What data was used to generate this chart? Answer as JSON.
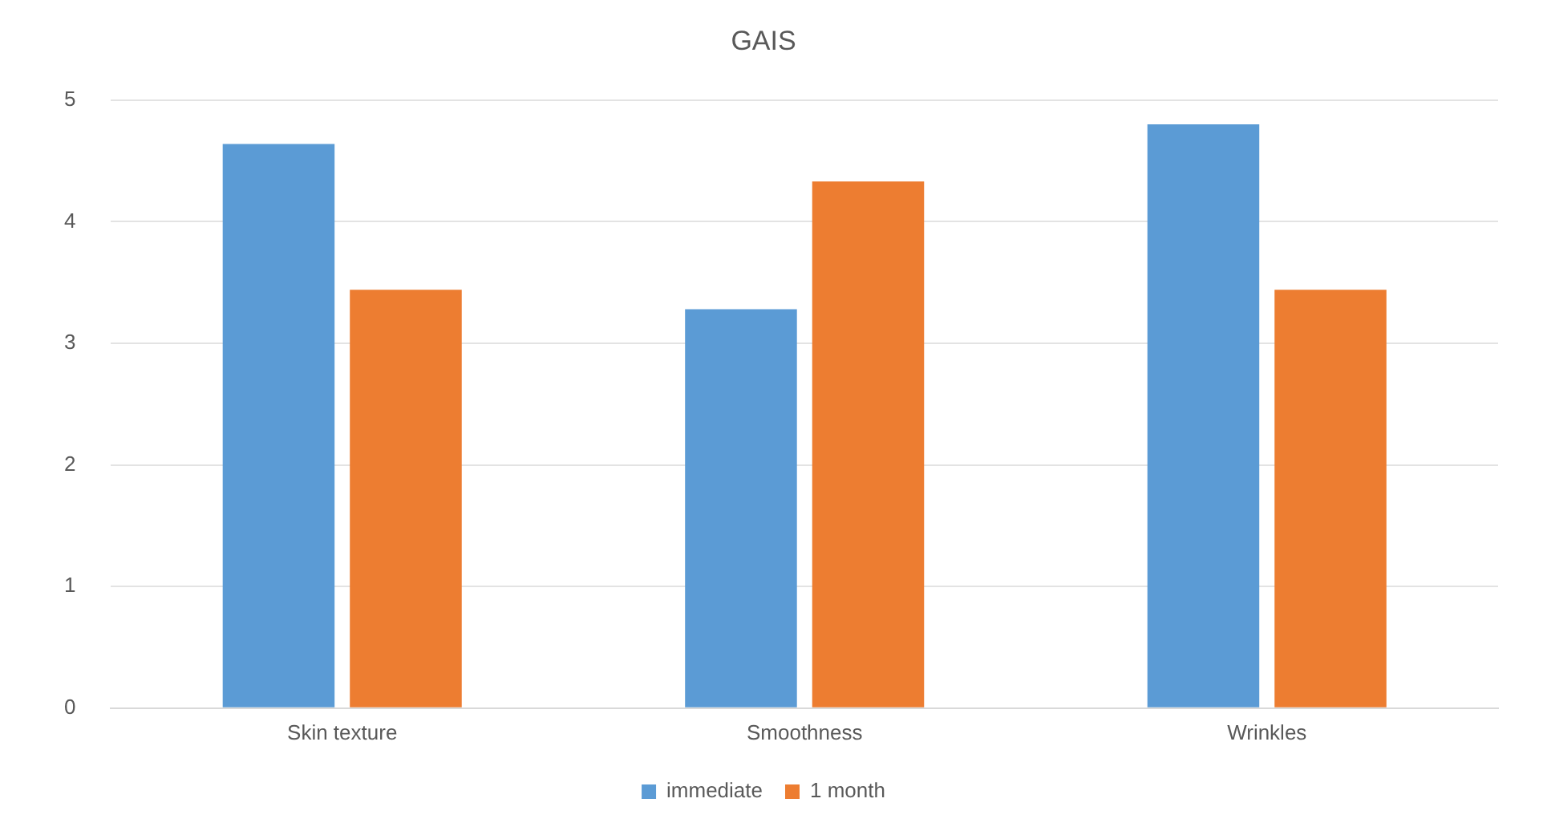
{
  "chart_data": {
    "type": "bar",
    "title": "GAIS",
    "categories": [
      "Skin texture",
      "Smoothness",
      "Wrinkles"
    ],
    "series": [
      {
        "name": "immediate",
        "color": "#5b9bd5",
        "values": [
          4.64,
          3.28,
          4.8
        ]
      },
      {
        "name": "1 month",
        "color": "#ed7d31",
        "values": [
          3.44,
          4.33,
          3.44
        ]
      }
    ],
    "ylim": [
      0,
      5
    ],
    "yticks": [
      0,
      1,
      2,
      3,
      4,
      5
    ],
    "grid": "y",
    "legend": "bottom"
  }
}
